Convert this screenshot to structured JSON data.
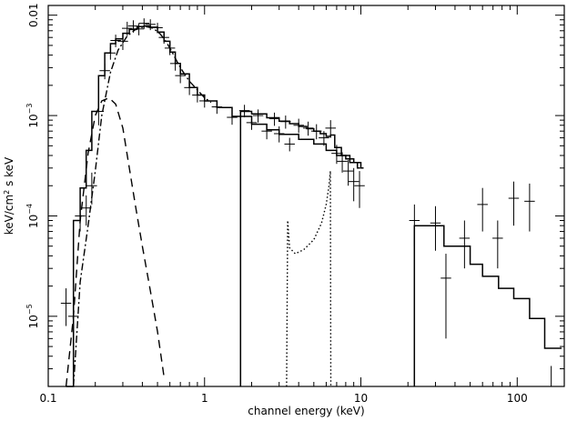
{
  "chart_data": {
    "type": "line",
    "xscale": "log",
    "yscale": "log",
    "xlim": [
      0.1,
      200
    ],
    "ylim": [
      2e-06,
      0.0125
    ],
    "xlabel": "channel energy (keV)",
    "ylabel": {
      "base": "keV/cm",
      "sup": "2",
      "rest": " s keV"
    },
    "xticks": [
      {
        "value": 0.1,
        "label": "0.1"
      },
      {
        "value": 1,
        "label": "1"
      },
      {
        "value": 10,
        "label": "10"
      },
      {
        "value": 100,
        "label": "100"
      }
    ],
    "yticks": [
      {
        "value": 0.01,
        "label": "0.01",
        "base": "",
        "exp": ""
      },
      {
        "value": 0.001,
        "label": "",
        "base": "10",
        "exp": "−3"
      },
      {
        "value": 0.0001,
        "label": "",
        "base": "10",
        "exp": "−4"
      },
      {
        "value": 1e-05,
        "label": "",
        "base": "10",
        "exp": "−5"
      }
    ],
    "grid": false,
    "legend": "none",
    "colors": {
      "ink": "#000000",
      "background": "#ffffff"
    },
    "series": [
      {
        "kind": "step-model",
        "style": "solid",
        "points": [
          [
            0.13,
            1.3e-06
          ],
          [
            0.145,
            9e-05
          ],
          [
            0.16,
            0.00019
          ],
          [
            0.175,
            0.00045
          ],
          [
            0.19,
            0.0011
          ],
          [
            0.21,
            0.0025
          ],
          [
            0.23,
            0.0042
          ],
          [
            0.25,
            0.0052
          ],
          [
            0.27,
            0.0058
          ],
          [
            0.3,
            0.0066
          ],
          [
            0.33,
            0.0072
          ],
          [
            0.37,
            0.0077
          ],
          [
            0.41,
            0.0078
          ],
          [
            0.45,
            0.0076
          ],
          [
            0.5,
            0.0068
          ],
          [
            0.55,
            0.0055
          ],
          [
            0.6,
            0.0043
          ],
          [
            0.65,
            0.0033
          ],
          [
            0.7,
            0.0026
          ],
          [
            0.8,
            0.0019
          ],
          [
            0.9,
            0.0016
          ],
          [
            1.0,
            0.0014
          ],
          [
            1.2,
            0.0012
          ],
          [
            1.5,
            0.00098
          ],
          [
            2.0,
            0.00082
          ],
          [
            2.5,
            0.00072
          ],
          [
            3.0,
            0.00065
          ],
          [
            4.0,
            0.00058
          ],
          [
            5.0,
            0.00052
          ],
          [
            6.0,
            0.00045
          ],
          [
            7.0,
            0.0004
          ],
          [
            8.0,
            0.00037
          ],
          [
            9.0,
            0.00034
          ],
          [
            10.0,
            0.0003
          ]
        ]
      },
      {
        "kind": "step-model",
        "style": "solid",
        "points": [
          [
            1.7,
            0.0011
          ],
          [
            2.0,
            0.00104
          ],
          [
            2.5,
            0.00095
          ],
          [
            3.0,
            0.00088
          ],
          [
            3.5,
            0.00083
          ],
          [
            4.0,
            0.00078
          ],
          [
            4.5,
            0.00074
          ],
          [
            5.0,
            0.0007
          ],
          [
            5.5,
            0.00066
          ],
          [
            6.0,
            0.00062
          ],
          [
            6.4,
            0.00064
          ],
          [
            6.8,
            0.00048
          ],
          [
            7.5,
            0.0004
          ],
          [
            8.5,
            0.00034
          ],
          [
            9.5,
            0.0003
          ]
        ]
      },
      {
        "kind": "step-model",
        "style": "solid",
        "points": [
          [
            22,
            8e-05
          ],
          [
            28,
            8e-05
          ],
          [
            34,
            5e-05
          ],
          [
            44,
            5e-05
          ],
          [
            50,
            3.3e-05
          ],
          [
            60,
            2.5e-05
          ],
          [
            76,
            1.9e-05
          ],
          [
            95,
            1.5e-05
          ],
          [
            120,
            9.5e-06
          ],
          [
            150,
            4.8e-06
          ],
          [
            185,
            4.8e-06
          ]
        ]
      },
      {
        "kind": "component",
        "style": "dashdot",
        "points": [
          [
            0.145,
            2e-06
          ],
          [
            0.16,
            2.2e-05
          ],
          [
            0.18,
            8e-05
          ],
          [
            0.2,
            0.00028
          ],
          [
            0.22,
            0.001
          ],
          [
            0.25,
            0.0027
          ],
          [
            0.28,
            0.0045
          ],
          [
            0.32,
            0.0062
          ],
          [
            0.37,
            0.0074
          ],
          [
            0.42,
            0.0077
          ],
          [
            0.47,
            0.0074
          ],
          [
            0.52,
            0.0065
          ],
          [
            0.57,
            0.0054
          ],
          [
            0.62,
            0.0043
          ],
          [
            0.67,
            0.0034
          ],
          [
            0.72,
            0.0028
          ],
          [
            0.8,
            0.0022
          ],
          [
            0.9,
            0.0018
          ],
          [
            1.0,
            0.0015
          ],
          [
            1.1,
            0.00135
          ]
        ]
      },
      {
        "kind": "component",
        "style": "dashed",
        "points": [
          [
            0.13,
            1.3e-06
          ],
          [
            0.145,
            1e-05
          ],
          [
            0.16,
            9e-05
          ],
          [
            0.18,
            0.00042
          ],
          [
            0.2,
            0.001
          ],
          [
            0.22,
            0.0014
          ],
          [
            0.245,
            0.0015
          ],
          [
            0.27,
            0.0013
          ],
          [
            0.3,
            0.00075
          ],
          [
            0.33,
            0.0003
          ],
          [
            0.36,
            0.00013
          ],
          [
            0.4,
            5e-05
          ],
          [
            0.45,
            1.8e-05
          ],
          [
            0.5,
            7e-06
          ],
          [
            0.55,
            2.5e-06
          ]
        ]
      },
      {
        "kind": "component",
        "style": "dotted",
        "points": [
          [
            3.35,
            2e-06
          ],
          [
            3.4,
            9e-05
          ],
          [
            3.5,
            4.8e-05
          ],
          [
            3.8,
            4.2e-05
          ],
          [
            4.3,
            4.6e-05
          ],
          [
            5.0,
            5.8e-05
          ],
          [
            5.6,
            8.5e-05
          ],
          [
            6.0,
            0.00013
          ],
          [
            6.25,
            0.0002
          ],
          [
            6.38,
            0.00028
          ],
          [
            6.42,
            2e-06
          ]
        ]
      },
      {
        "kind": "data",
        "style": "crosses",
        "points": [
          [
            0.13,
            1.35e-05,
            5.5e-06
          ],
          [
            0.145,
            1e-05,
            5e-06
          ],
          [
            0.16,
            0.0001,
            3e-05
          ],
          [
            0.175,
            0.00012,
            4e-05
          ],
          [
            0.19,
            0.0002,
            7e-05
          ],
          [
            0.21,
            0.0011,
            0.0003
          ],
          [
            0.23,
            0.0028,
            0.0005
          ],
          [
            0.25,
            0.0042,
            0.0006
          ],
          [
            0.27,
            0.0056,
            0.0008
          ],
          [
            0.3,
            0.0055,
            0.001
          ],
          [
            0.32,
            0.0074,
            0.0012
          ],
          [
            0.35,
            0.0078,
            0.0011
          ],
          [
            0.38,
            0.0073,
            0.001
          ],
          [
            0.41,
            0.0083,
            0.001
          ],
          [
            0.45,
            0.0081,
            0.001
          ],
          [
            0.5,
            0.0075,
            0.0009
          ],
          [
            0.55,
            0.006,
            0.0008
          ],
          [
            0.6,
            0.0047,
            0.0007
          ],
          [
            0.65,
            0.0033,
            0.0005
          ],
          [
            0.7,
            0.0025,
            0.0004
          ],
          [
            0.8,
            0.0019,
            0.0003
          ],
          [
            0.9,
            0.0016,
            0.00025
          ],
          [
            1.0,
            0.0014,
            0.0002
          ],
          [
            1.2,
            0.00122,
            0.00018
          ],
          [
            1.5,
            0.00096,
            0.00015
          ],
          [
            2.0,
            0.00085,
            0.00013
          ],
          [
            2.5,
            0.0007,
            0.00012
          ],
          [
            3.0,
            0.00066,
            0.00012
          ],
          [
            3.5,
            0.00052,
            8e-05
          ],
          [
            1.8,
            0.00112,
            0.00016
          ],
          [
            2.2,
            0.001,
            0.00015
          ],
          [
            2.8,
            0.00093,
            0.00014
          ],
          [
            3.3,
            0.00087,
            0.00013
          ],
          [
            4.0,
            0.0008,
            0.00013
          ],
          [
            4.6,
            0.00075,
            0.00012
          ],
          [
            5.2,
            0.0007,
            0.00012
          ],
          [
            5.8,
            0.0006,
            0.0001
          ],
          [
            6.4,
            0.00075,
            0.00015
          ],
          [
            7.0,
            0.00042,
            9e-05
          ],
          [
            7.6,
            0.00035,
            8e-05
          ],
          [
            8.3,
            0.00028,
            8e-05
          ],
          [
            9.0,
            0.00022,
            8e-05
          ],
          [
            9.8,
            0.0002,
            8e-05
          ],
          [
            22,
            9e-05,
            4e-05
          ],
          [
            30,
            8.5e-05,
            4e-05
          ],
          [
            35,
            2.4e-05,
            1.8e-05
          ],
          [
            46,
            6e-05,
            3e-05
          ],
          [
            60,
            0.00013,
            6e-05
          ],
          [
            75,
            6e-05,
            3e-05
          ],
          [
            95,
            0.00015,
            7e-05
          ],
          [
            120,
            0.00014,
            7e-05
          ],
          [
            165,
            2e-06,
            1.2e-06
          ]
        ]
      }
    ]
  }
}
